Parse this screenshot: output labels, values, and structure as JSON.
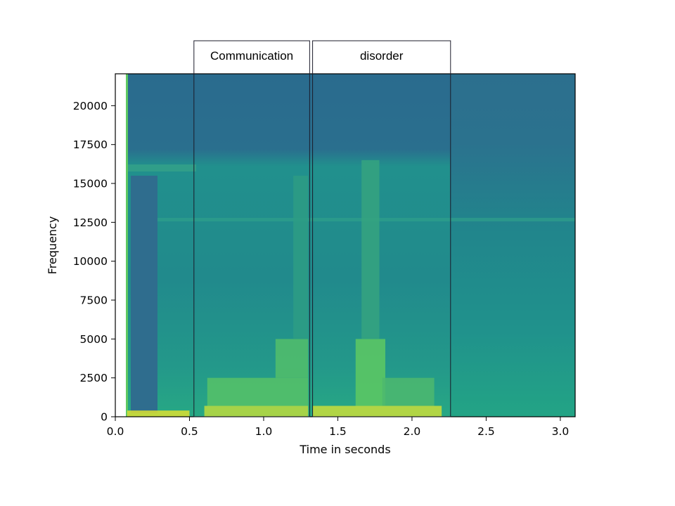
{
  "chart_data": {
    "type": "heatmap",
    "subtype": "spectrogram",
    "xlabel": "Time in seconds",
    "ylabel": "Frequency",
    "xlim": [
      0.0,
      3.1
    ],
    "ylim": [
      0,
      22050
    ],
    "x_ticks": [
      0.0,
      0.5,
      1.0,
      1.5,
      2.0,
      2.5,
      3.0
    ],
    "x_tick_labels": [
      "0.0",
      "0.5",
      "1.0",
      "1.5",
      "2.0",
      "2.5",
      "3.0"
    ],
    "y_ticks": [
      0,
      2500,
      5000,
      7500,
      10000,
      12500,
      15000,
      17500,
      20000
    ],
    "y_tick_labels": [
      "0",
      "2500",
      "5000",
      "7500",
      "10000",
      "12500",
      "15000",
      "17500",
      "20000"
    ],
    "colormap": "viridis",
    "annotations": [
      {
        "label": "Communication",
        "start": 0.53,
        "end": 1.31
      },
      {
        "label": "disorder",
        "start": 1.33,
        "end": 2.26
      }
    ],
    "energy_regions": [
      {
        "t0": 0.08,
        "t1": 0.5,
        "f0": 0,
        "f1": 400,
        "level": 0.95
      },
      {
        "t0": 0.6,
        "t1": 1.3,
        "f0": 0,
        "f1": 700,
        "level": 0.9
      },
      {
        "t0": 0.62,
        "t1": 1.3,
        "f0": 700,
        "f1": 2500,
        "level": 0.72
      },
      {
        "t0": 1.08,
        "t1": 1.3,
        "f0": 2500,
        "f1": 5000,
        "level": 0.7
      },
      {
        "t0": 1.2,
        "t1": 1.3,
        "f0": 5000,
        "f1": 15500,
        "level": 0.55
      },
      {
        "t0": 1.33,
        "t1": 2.2,
        "f0": 0,
        "f1": 700,
        "level": 0.92
      },
      {
        "t0": 1.62,
        "t1": 1.82,
        "f0": 700,
        "f1": 5000,
        "level": 0.75
      },
      {
        "t0": 1.66,
        "t1": 1.78,
        "f0": 5000,
        "f1": 16500,
        "level": 0.58
      },
      {
        "t0": 1.8,
        "t1": 2.15,
        "f0": 700,
        "f1": 2500,
        "level": 0.68
      }
    ],
    "grid": false
  }
}
